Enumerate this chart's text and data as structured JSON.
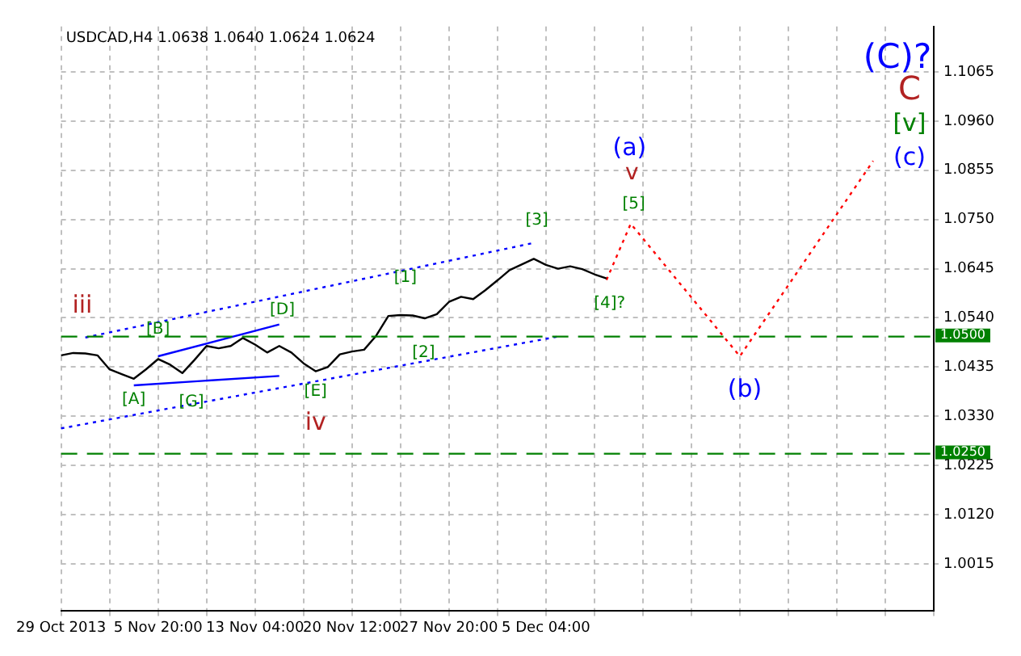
{
  "chart_data": {
    "type": "line",
    "title": "USDCAD,H4 1.0638 1.0640 1.0624 1.0624",
    "categories": [
      "29 Oct 2013",
      null,
      null,
      null,
      null,
      null,
      null,
      null,
      "5 Nov 20:00",
      null,
      null,
      null,
      null,
      null,
      null,
      null,
      "13 Nov 04:00",
      null,
      null,
      null,
      null,
      null,
      null,
      null,
      "20 Nov 12:00",
      null,
      null,
      null,
      null,
      null,
      null,
      null,
      "27 Nov 20:00",
      null,
      null,
      null,
      null,
      null,
      null,
      null,
      "5 Dec 04:00",
      null,
      null,
      null,
      null,
      null,
      null,
      null,
      null,
      null,
      null,
      null,
      null,
      null,
      null,
      null,
      null,
      null,
      null,
      null,
      null,
      null,
      null,
      null,
      null,
      null,
      null,
      null,
      null,
      null,
      null,
      null,
      null
    ],
    "series": [
      {
        "color": "#000000",
        "line_style": "solid",
        "values": [
          1.046,
          1.0465,
          1.0464,
          1.046,
          1.043,
          1.042,
          1.041,
          1.043,
          1.0452,
          1.044,
          1.0422,
          1.045,
          1.048,
          1.0475,
          1.048,
          1.0497,
          1.0483,
          1.0466,
          1.048,
          1.0466,
          1.0443,
          1.0426,
          1.0435,
          1.0462,
          1.0468,
          1.0472,
          1.0502,
          1.0544,
          1.0546,
          1.0545,
          1.0539,
          1.0548,
          1.0574,
          1.0585,
          1.058,
          1.0599,
          1.062,
          1.0642,
          1.0654,
          1.0666,
          1.0653,
          1.0645,
          1.065,
          1.0644,
          1.0633,
          1.0624,
          null,
          null,
          null,
          null,
          null,
          null,
          null,
          null,
          null,
          null,
          null,
          null,
          null,
          null,
          null,
          null,
          null,
          null,
          null,
          null,
          null,
          null,
          null,
          null,
          null,
          null,
          null
        ]
      },
      {
        "type": "line",
        "color": "#ff0000",
        "line_style": "dotted",
        "values": [
          null,
          null,
          null,
          null,
          null,
          null,
          null,
          null,
          null,
          null,
          null,
          null,
          null,
          null,
          null,
          null,
          null,
          null,
          null,
          null,
          null,
          null,
          null,
          null,
          null,
          null,
          null,
          null,
          null,
          null,
          null,
          null,
          null,
          null,
          null,
          null,
          null,
          null,
          null,
          null,
          null,
          null,
          null,
          null,
          null,
          1.0621,
          null,
          1.0741,
          null,
          null,
          null,
          null,
          null,
          null,
          null,
          null,
          1.0458,
          null,
          null,
          null,
          null,
          null,
          null,
          null,
          null,
          null,
          null,
          1.0875,
          null,
          null,
          null,
          null,
          null
        ]
      },
      {
        "type": "line",
        "color": "#0000ff",
        "line_style": "dotted",
        "values": [
          null,
          null,
          1.0498,
          null,
          null,
          null,
          null,
          null,
          null,
          null,
          null,
          null,
          null,
          null,
          null,
          null,
          null,
          null,
          null,
          null,
          null,
          null,
          null,
          null,
          null,
          null,
          null,
          null,
          null,
          null,
          null,
          null,
          null,
          null,
          null,
          null,
          null,
          null,
          null,
          1.07,
          null,
          null,
          null,
          null,
          null,
          null,
          null,
          null,
          null,
          null,
          null,
          null,
          null,
          null,
          null,
          null,
          null,
          null,
          null,
          null,
          null,
          null,
          null,
          null,
          null,
          null,
          null,
          null,
          null,
          null,
          null,
          null,
          null
        ]
      },
      {
        "type": "line",
        "color": "#0000ff",
        "line_style": "dotted",
        "values": [
          1.0304,
          null,
          null,
          null,
          null,
          null,
          null,
          null,
          null,
          null,
          null,
          null,
          null,
          null,
          null,
          null,
          null,
          null,
          null,
          null,
          null,
          null,
          null,
          null,
          null,
          null,
          null,
          null,
          null,
          null,
          null,
          null,
          null,
          null,
          null,
          null,
          null,
          null,
          null,
          null,
          null,
          1.05,
          null,
          null,
          null,
          null,
          null,
          null,
          null,
          null,
          null,
          null,
          null,
          null,
          null,
          null,
          null,
          null,
          null,
          null,
          null,
          null,
          null,
          null,
          null,
          null,
          null,
          null,
          null,
          null,
          null,
          null,
          null
        ]
      },
      {
        "type": "line",
        "color": "#0000ff",
        "line_style": "solid",
        "values": [
          null,
          null,
          null,
          null,
          null,
          null,
          1.0396,
          null,
          null,
          null,
          null,
          null,
          null,
          null,
          null,
          null,
          null,
          null,
          1.0416,
          null,
          null,
          null,
          null,
          null,
          null,
          null,
          null,
          null,
          null,
          null,
          null,
          null,
          null,
          null,
          null,
          null,
          null,
          null,
          null,
          null,
          null,
          null,
          null,
          null,
          null,
          null,
          null,
          null,
          null,
          null,
          null,
          null,
          null,
          null,
          null,
          null,
          null,
          null,
          null,
          null,
          null,
          null,
          null,
          null,
          null,
          null,
          null,
          null,
          null,
          null,
          null,
          null,
          null
        ]
      },
      {
        "type": "line",
        "color": "#0000ff",
        "line_style": "solid",
        "values": [
          null,
          null,
          null,
          null,
          null,
          null,
          null,
          null,
          1.0458,
          null,
          null,
          null,
          null,
          null,
          null,
          null,
          null,
          null,
          1.0526,
          null,
          null,
          null,
          null,
          null,
          null,
          null,
          null,
          null,
          null,
          null,
          null,
          null,
          null,
          null,
          null,
          null,
          null,
          null,
          null,
          null,
          null,
          null,
          null,
          null,
          null,
          null,
          null,
          null,
          null,
          null,
          null,
          null,
          null,
          null,
          null,
          null,
          null,
          null,
          null,
          null,
          null,
          null,
          null,
          null,
          null,
          null,
          null,
          null,
          null,
          null,
          null,
          null,
          null
        ]
      }
    ],
    "ylim": [
      0.9914,
      1.1162
    ],
    "yticks": [
      1.0015,
      {
        "value": 1.012,
        "label": "1.0120"
      },
      1.0225,
      {
        "value": 1.033,
        "label": "1.0330"
      },
      1.0435,
      {
        "value": 1.054,
        "label": "1.0540"
      },
      1.0645,
      {
        "value": 1.075,
        "label": "1.0750"
      },
      1.0855,
      {
        "value": 1.096,
        "label": "1.0960"
      },
      1.1065
    ],
    "ref_lines": [
      {
        "axis": "y",
        "value": 1.05,
        "label": "1.0500",
        "color": "#008000",
        "line_style": "dashed"
      },
      {
        "axis": "y",
        "value": 1.025,
        "label": "1.0250",
        "color": "#008000",
        "line_style": "dashed"
      }
    ],
    "annotations": [
      "iii",
      "[B]",
      "[A]",
      "[G]",
      "[D]",
      "[E]",
      "iv",
      "[1]",
      "[2]",
      "[3]",
      "[4]?",
      "[5]",
      "v",
      "(a)",
      "(b)",
      "(c)",
      "[v]",
      "C",
      "(C)?"
    ],
    "grid": true,
    "legend": false,
    "marker": "none"
  }
}
